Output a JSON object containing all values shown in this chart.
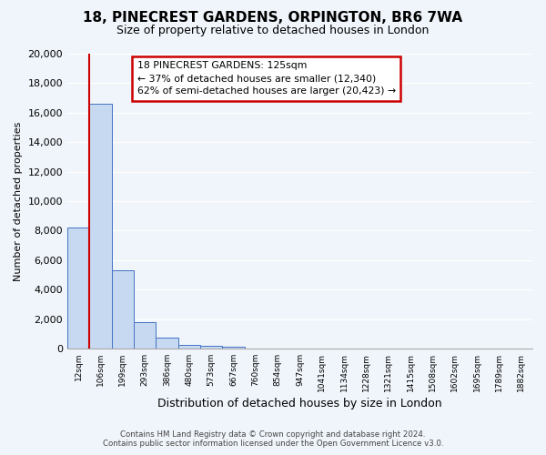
{
  "title": "18, PINECREST GARDENS, ORPINGTON, BR6 7WA",
  "subtitle": "Size of property relative to detached houses in London",
  "xlabel": "Distribution of detached houses by size in London",
  "ylabel": "Number of detached properties",
  "bar_values": [
    8200,
    16600,
    5300,
    1800,
    750,
    250,
    200,
    150,
    0,
    0,
    0,
    0,
    0,
    0,
    0,
    0,
    0,
    0,
    0,
    0,
    0
  ],
  "bar_labels": [
    "12sqm",
    "106sqm",
    "199sqm",
    "293sqm",
    "386sqm",
    "480sqm",
    "573sqm",
    "667sqm",
    "760sqm",
    "854sqm",
    "947sqm",
    "1041sqm",
    "1134sqm",
    "1228sqm",
    "1321sqm",
    "1415sqm",
    "1508sqm",
    "1602sqm",
    "1695sqm",
    "1789sqm",
    "1882sqm"
  ],
  "bar_color": "#c6d9f0",
  "bar_edge_color": "#4472c4",
  "vline_color": "#cc0000",
  "ylim": [
    0,
    20000
  ],
  "yticks": [
    0,
    2000,
    4000,
    6000,
    8000,
    10000,
    12000,
    14000,
    16000,
    18000,
    20000
  ],
  "annotation_title": "18 PINECREST GARDENS: 125sqm",
  "annotation_line1": "← 37% of detached houses are smaller (12,340)",
  "annotation_line2": "62% of semi-detached houses are larger (20,423) →",
  "annotation_box_color": "#cc0000",
  "footer_line1": "Contains HM Land Registry data © Crown copyright and database right 2024.",
  "footer_line2": "Contains public sector information licensed under the Open Government Licence v3.0.",
  "background_color": "#f0f5fb",
  "grid_color": "#ffffff"
}
